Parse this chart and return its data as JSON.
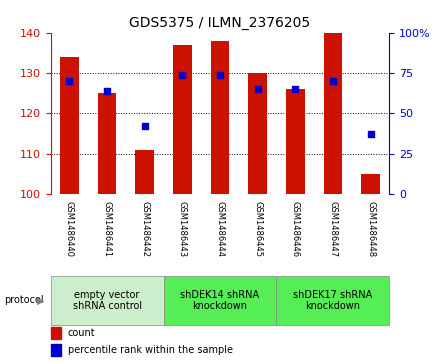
{
  "title": "GDS5375 / ILMN_2376205",
  "samples": [
    "GSM1486440",
    "GSM1486441",
    "GSM1486442",
    "GSM1486443",
    "GSM1486444",
    "GSM1486445",
    "GSM1486446",
    "GSM1486447",
    "GSM1486448"
  ],
  "counts": [
    134,
    125,
    111,
    137,
    138,
    130,
    126,
    140,
    105
  ],
  "percentiles": [
    70,
    64,
    42,
    74,
    74,
    65,
    65,
    70,
    37
  ],
  "ylim_left": [
    100,
    140
  ],
  "ylim_right": [
    0,
    100
  ],
  "yticks_left": [
    100,
    110,
    120,
    130,
    140
  ],
  "yticks_right": [
    0,
    25,
    50,
    75,
    100
  ],
  "bar_color": "#CC1100",
  "dot_color": "#0000CC",
  "bar_width": 0.5,
  "groups": [
    {
      "label": "empty vector\nshRNA control",
      "start": 0,
      "end": 3,
      "color": "#cceecc"
    },
    {
      "label": "shDEK14 shRNA\nknockdown",
      "start": 3,
      "end": 6,
      "color": "#55ee55"
    },
    {
      "label": "shDEK17 shRNA\nknockdown",
      "start": 6,
      "end": 9,
      "color": "#55ee55"
    }
  ],
  "protocol_label": "protocol",
  "legend_count": "count",
  "legend_percentile": "percentile rank within the sample",
  "background_color": "#ffffff",
  "plot_bg_color": "#ffffff",
  "left_axis_color": "#CC1100",
  "right_axis_color": "#0000CC",
  "label_bg_color": "#d0d0d0",
  "title_fontsize": 10,
  "tick_fontsize": 8,
  "sample_fontsize": 6,
  "group_fontsize": 7,
  "legend_fontsize": 7
}
